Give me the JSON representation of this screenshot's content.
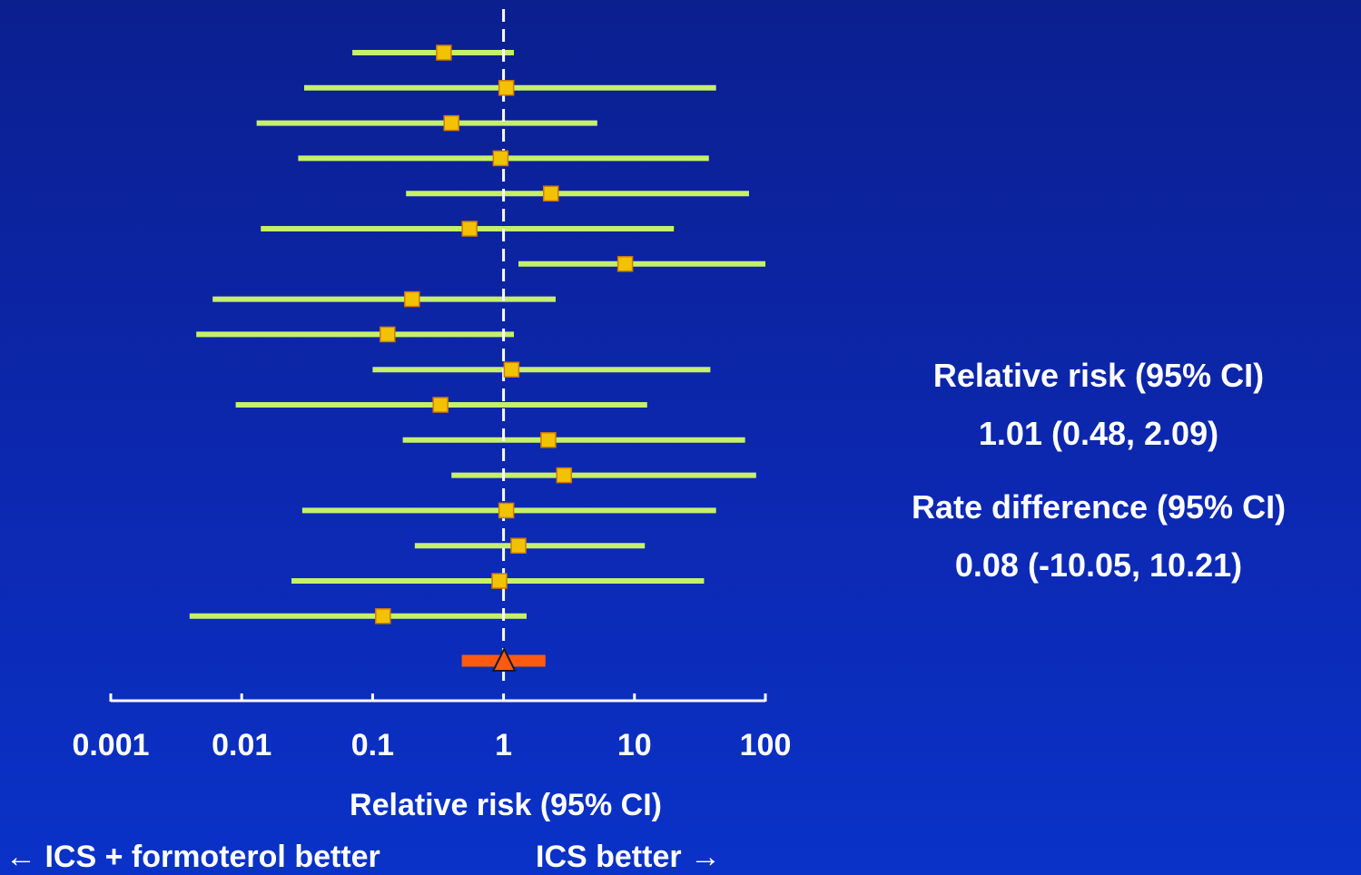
{
  "chart_data": {
    "type": "forest",
    "scale": "log",
    "xlim": [
      0.001,
      100
    ],
    "x_ticks": [
      {
        "value": 0.001,
        "label": "0.001"
      },
      {
        "value": 0.01,
        "label": "0.01"
      },
      {
        "value": 0.1,
        "label": "0.1"
      },
      {
        "value": 1,
        "label": "1"
      },
      {
        "value": 10,
        "label": "10"
      },
      {
        "value": 100,
        "label": "100"
      }
    ],
    "xlabel": "Relative risk (95% CI)",
    "reference_line": 1,
    "studies": [
      {
        "rr": 0.35,
        "lo": 0.07,
        "hi": 1.2
      },
      {
        "rr": 1.05,
        "lo": 0.03,
        "hi": 42
      },
      {
        "rr": 0.4,
        "lo": 0.013,
        "hi": 5.2
      },
      {
        "rr": 0.95,
        "lo": 0.027,
        "hi": 37
      },
      {
        "rr": 2.3,
        "lo": 0.18,
        "hi": 75
      },
      {
        "rr": 0.55,
        "lo": 0.014,
        "hi": 20
      },
      {
        "rr": 8.5,
        "lo": 1.3,
        "hi": 100
      },
      {
        "rr": 0.2,
        "lo": 0.006,
        "hi": 2.5
      },
      {
        "rr": 0.13,
        "lo": 0.0045,
        "hi": 1.2
      },
      {
        "rr": 1.15,
        "lo": 0.1,
        "hi": 38
      },
      {
        "rr": 0.33,
        "lo": 0.009,
        "hi": 12.5
      },
      {
        "rr": 2.2,
        "lo": 0.17,
        "hi": 70
      },
      {
        "rr": 2.9,
        "lo": 0.4,
        "hi": 85
      },
      {
        "rr": 1.05,
        "lo": 0.029,
        "hi": 42
      },
      {
        "rr": 1.3,
        "lo": 0.21,
        "hi": 12
      },
      {
        "rr": 0.93,
        "lo": 0.024,
        "hi": 34
      },
      {
        "rr": 0.12,
        "lo": 0.004,
        "hi": 1.5
      }
    ],
    "pooled": {
      "rr": 1.01,
      "lo": 0.48,
      "hi": 2.09
    }
  },
  "annotations": {
    "rr_heading": "Relative risk (95% CI)",
    "rr_value": "1.01 (0.48, 2.09)",
    "rd_heading": "Rate difference (95% CI)",
    "rd_value": "0.08 (-10.05, 10.21)"
  },
  "direction": {
    "left": "← ICS + formoterol better",
    "right": "ICS better →"
  },
  "colors": {
    "ci_line": "#c6f06a",
    "study_marker": "#f2c200",
    "study_marker_border": "#d07a00",
    "pooled_line": "#ff5a12",
    "pooled_marker": "#ff5a12",
    "pooled_marker_border": "#1a1a1a",
    "reference_line": "#ffffff",
    "axis": "#ffffff"
  }
}
